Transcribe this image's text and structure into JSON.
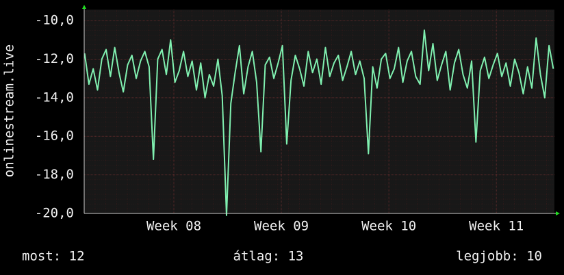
{
  "chart_data": {
    "type": "line",
    "y_label": "onlinestream.live",
    "x": [
      7.17,
      7.21,
      7.25,
      7.29,
      7.33,
      7.37,
      7.41,
      7.45,
      7.49,
      7.53,
      7.57,
      7.61,
      7.65,
      7.69,
      7.73,
      7.77,
      7.81,
      7.85,
      7.89,
      7.93,
      7.97,
      8.01,
      8.05,
      8.09,
      8.13,
      8.17,
      8.21,
      8.25,
      8.29,
      8.33,
      8.37,
      8.41,
      8.45,
      8.49,
      8.53,
      8.57,
      8.61,
      8.65,
      8.69,
      8.73,
      8.77,
      8.81,
      8.85,
      8.89,
      8.93,
      8.97,
      9.01,
      9.05,
      9.09,
      9.13,
      9.17,
      9.21,
      9.25,
      9.29,
      9.33,
      9.37,
      9.41,
      9.45,
      9.49,
      9.53,
      9.57,
      9.61,
      9.65,
      9.69,
      9.73,
      9.77,
      9.81,
      9.85,
      9.89,
      9.93,
      9.97,
      10.01,
      10.05,
      10.09,
      10.13,
      10.17,
      10.21,
      10.25,
      10.29,
      10.33,
      10.37,
      10.41,
      10.45,
      10.49,
      10.53,
      10.57,
      10.61,
      10.65,
      10.69,
      10.73,
      10.77,
      10.81,
      10.85,
      10.89,
      10.93,
      10.97,
      11.01,
      11.05,
      11.09,
      11.13,
      11.17,
      11.21,
      11.25,
      11.29,
      11.33,
      11.37,
      11.41,
      11.45,
      11.49,
      11.53
    ],
    "series": [
      {
        "name": "onlinestream.live",
        "color": "#80f0b0",
        "values": [
          -11.7,
          -13.3,
          -12.5,
          -13.6,
          -12.0,
          -11.5,
          -12.9,
          -11.4,
          -12.7,
          -13.7,
          -12.3,
          -11.8,
          -13.0,
          -12.1,
          -11.6,
          -12.4,
          -17.2,
          -12.0,
          -11.5,
          -12.8,
          -11.0,
          -13.2,
          -12.6,
          -11.6,
          -12.9,
          -12.1,
          -13.6,
          -12.2,
          -14.0,
          -12.8,
          -13.4,
          -12.0,
          -13.9,
          -20.1,
          -14.3,
          -12.7,
          -11.3,
          -13.8,
          -12.4,
          -11.6,
          -13.2,
          -16.8,
          -12.3,
          -11.9,
          -13.0,
          -12.2,
          -11.3,
          -16.4,
          -13.1,
          -11.8,
          -12.5,
          -13.4,
          -11.6,
          -12.7,
          -12.0,
          -13.3,
          -11.4,
          -12.9,
          -12.2,
          -11.8,
          -13.1,
          -12.4,
          -11.6,
          -12.8,
          -12.1,
          -13.0,
          -16.9,
          -12.4,
          -13.5,
          -12.0,
          -11.7,
          -13.0,
          -12.5,
          -11.4,
          -13.2,
          -12.1,
          -11.6,
          -12.9,
          -13.3,
          -10.5,
          -12.6,
          -11.2,
          -13.1,
          -12.3,
          -11.6,
          -13.6,
          -12.2,
          -11.5,
          -12.8,
          -13.5,
          -12.1,
          -16.3,
          -12.6,
          -11.9,
          -13.0,
          -12.3,
          -11.7,
          -12.9,
          -12.2,
          -13.4,
          -12.0,
          -12.7,
          -13.8,
          -12.4,
          -13.5,
          -10.9,
          -12.8,
          -14.0,
          -11.3,
          -12.5
        ]
      }
    ],
    "xlim": [
      7.166,
      11.54
    ],
    "xticks": [
      {
        "value": 8,
        "label": "Week 08"
      },
      {
        "value": 9,
        "label": "Week 09"
      },
      {
        "value": 10,
        "label": "Week 10"
      },
      {
        "value": 11,
        "label": "Week 11"
      }
    ],
    "ylim": [
      -20,
      -9.43
    ],
    "yticks": [
      {
        "value": -20,
        "label": "-20,0"
      },
      {
        "value": -18,
        "label": "-18,0"
      },
      {
        "value": -16,
        "label": "-16,0"
      },
      {
        "value": -14,
        "label": "-14,0"
      },
      {
        "value": -12,
        "label": "-12,0"
      },
      {
        "value": -10,
        "label": "-10,0"
      }
    ],
    "grid": true,
    "stats": [
      "most: 12",
      "átlag: 13",
      "legjobb: 10"
    ]
  }
}
